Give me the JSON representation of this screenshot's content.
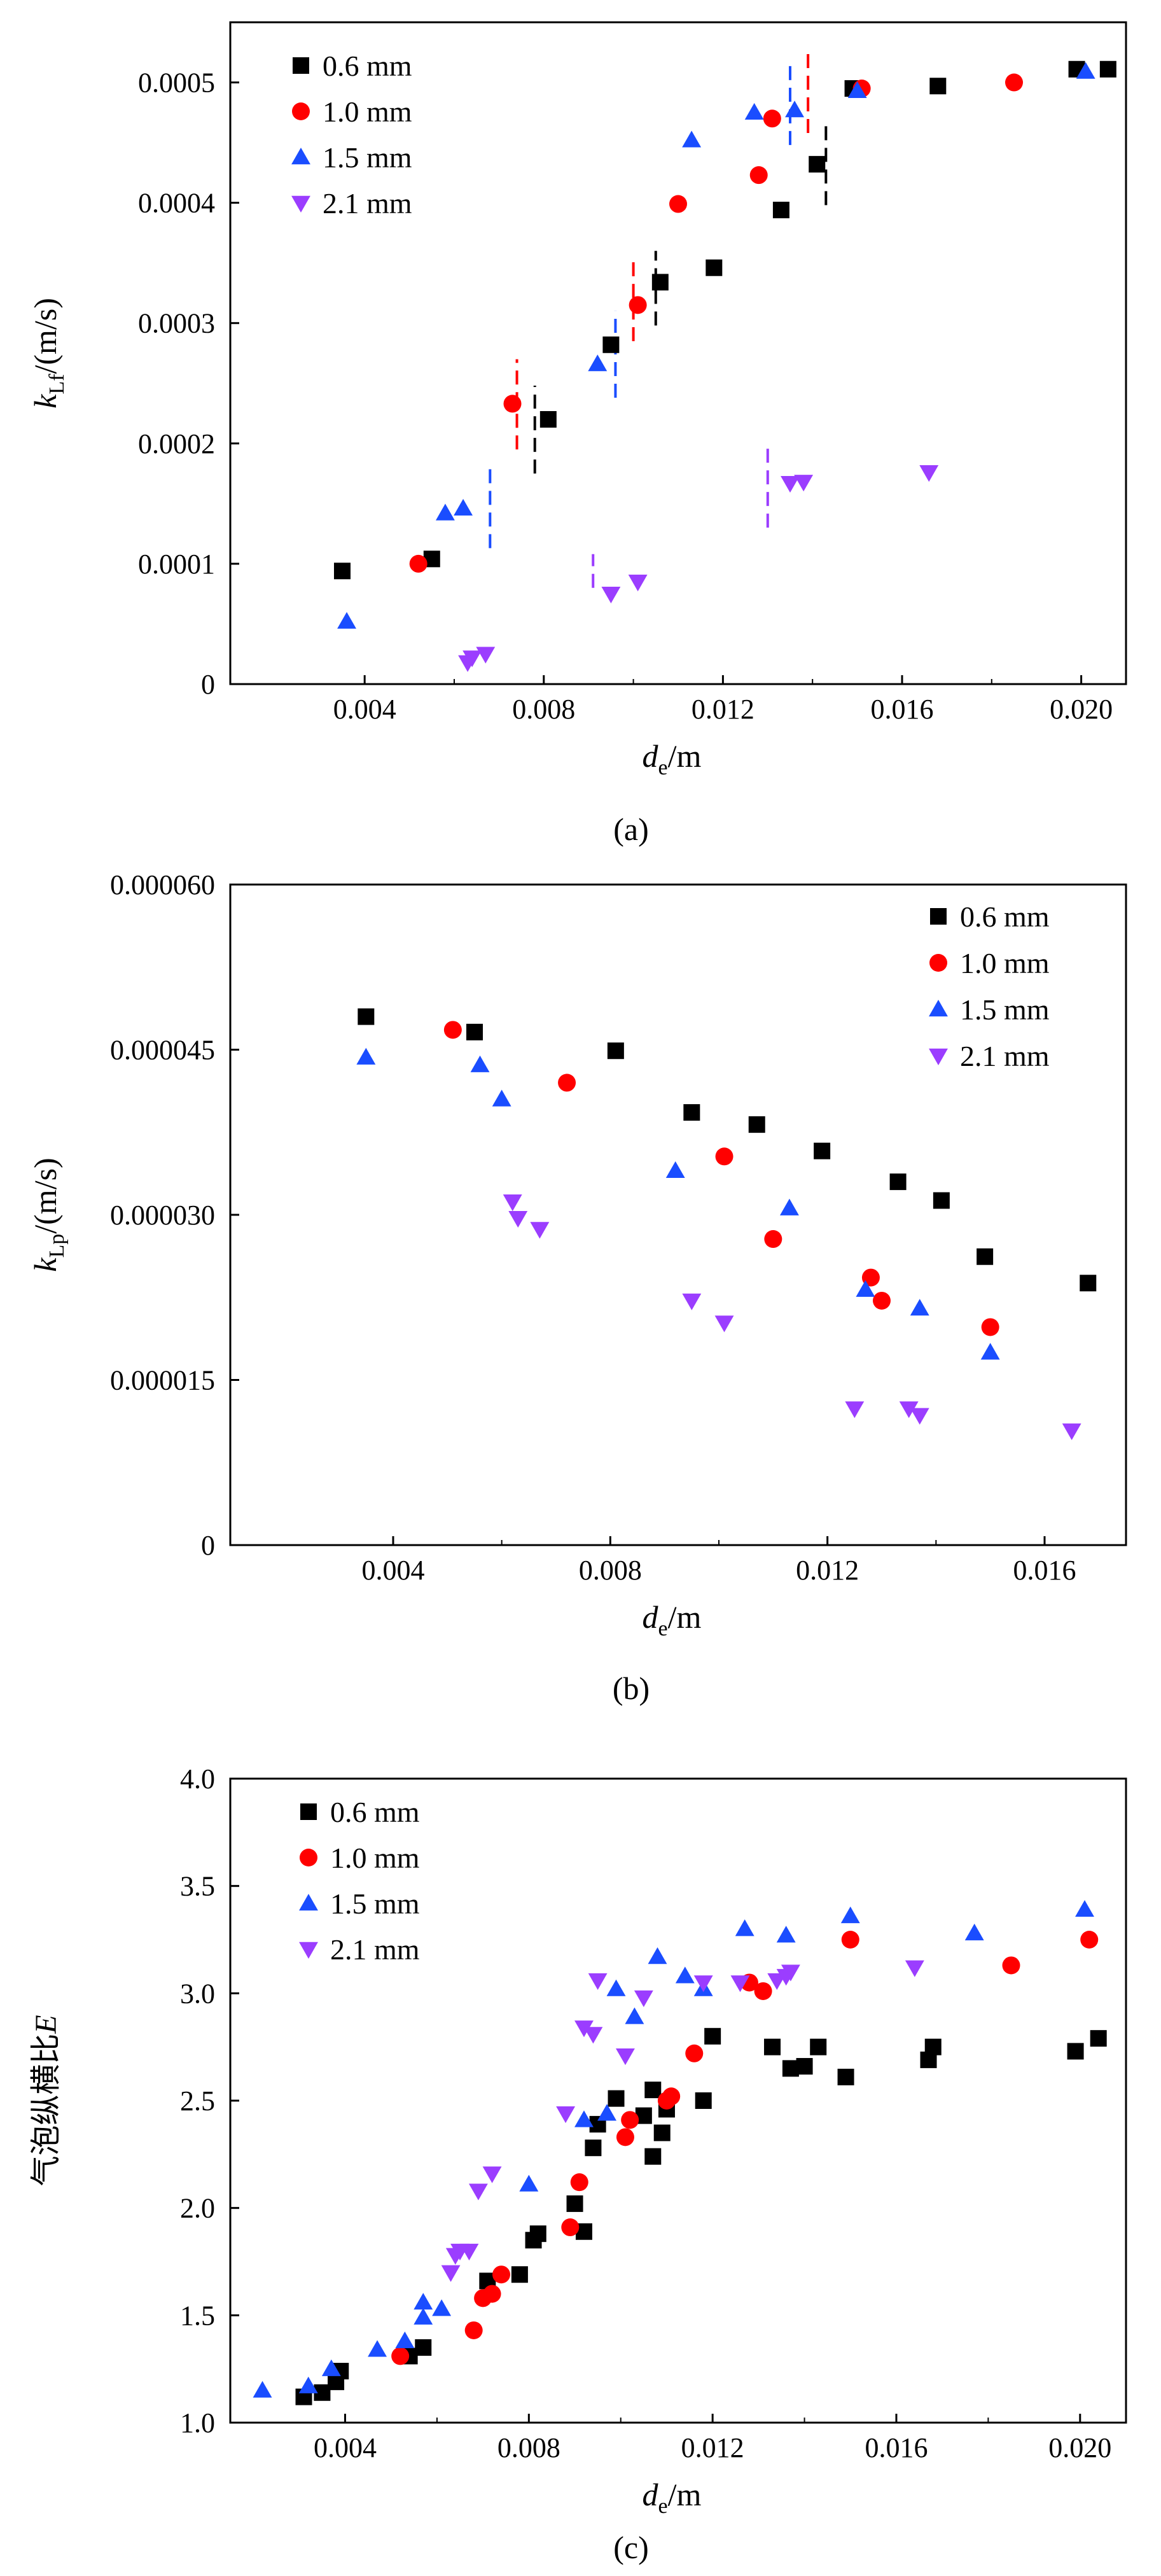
{
  "colors": {
    "0.6 mm": "#000000",
    "1.0 mm": "#ff0000",
    "1.5 mm": "#1a4dff",
    "2.1 mm": "#9b3dff"
  },
  "markers": {
    "0.6 mm": "square",
    "1.0 mm": "circle",
    "1.5 mm": "triangle-up",
    "2.1 mm": "triangle-down"
  },
  "chart_data": [
    {
      "type": "scatter",
      "panel": "(a)",
      "xlabel": {
        "main": "d",
        "sub": "e",
        "unit": "/m"
      },
      "ylabel": {
        "main": "k",
        "sub": "Lf",
        "unit": "/(m/s)"
      },
      "xlim": [
        0.001,
        0.021
      ],
      "ylim": [
        0,
        0.00055
      ],
      "xticks": [
        0.004,
        0.008,
        0.012,
        0.016,
        0.02
      ],
      "xtick_labels": [
        "0.004",
        "0.008",
        "0.012",
        "0.016",
        "0.020"
      ],
      "yticks": [
        0,
        0.0001,
        0.0002,
        0.0003,
        0.0004,
        0.0005
      ],
      "ytick_labels": [
        "0",
        "0.0001",
        "0.0002",
        "0.0003",
        "0.0004",
        "0.0005"
      ],
      "legend_position": "top-left",
      "series": [
        {
          "name": "0.6 mm",
          "points": [
            [
              0.0035,
              9.4e-05
            ],
            [
              0.0055,
              0.000104
            ],
            [
              0.0081,
              0.00022
            ],
            [
              0.0095,
              0.000282
            ],
            [
              0.0106,
              0.000334
            ],
            [
              0.0118,
              0.000346
            ],
            [
              0.0133,
              0.000394
            ],
            [
              0.0141,
              0.000432
            ],
            [
              0.0149,
              0.000495
            ],
            [
              0.0168,
              0.000497
            ],
            [
              0.0199,
              0.000511
            ],
            [
              0.0206,
              0.000511
            ]
          ]
        },
        {
          "name": "1.0 mm",
          "points": [
            [
              0.0052,
              0.0001
            ],
            [
              0.0073,
              0.000233
            ],
            [
              0.0101,
              0.000315
            ],
            [
              0.011,
              0.000399
            ],
            [
              0.0128,
              0.000423
            ],
            [
              0.0131,
              0.00047
            ],
            [
              0.0151,
              0.000495
            ],
            [
              0.0185,
              0.0005
            ]
          ]
        },
        {
          "name": "1.5 mm",
          "points": [
            [
              0.0036,
              5.2e-05
            ],
            [
              0.0058,
              0.000142
            ],
            [
              0.0062,
              0.000146
            ],
            [
              0.0092,
              0.000266
            ],
            [
              0.0113,
              0.000452
            ],
            [
              0.0127,
              0.000475
            ],
            [
              0.0136,
              0.000477
            ],
            [
              0.015,
              0.000493
            ],
            [
              0.0201,
              0.000509
            ]
          ]
        },
        {
          "name": "2.1 mm",
          "points": [
            [
              0.0063,
              1.8e-05
            ],
            [
              0.0064,
              2.2e-05
            ],
            [
              0.0067,
              2.5e-05
            ],
            [
              0.0095,
              7.5e-05
            ],
            [
              0.0101,
              8.5e-05
            ],
            [
              0.0135,
              0.000167
            ],
            [
              0.0138,
              0.000168
            ],
            [
              0.0166,
              0.000176
            ]
          ]
        }
      ],
      "dashed_markers": [
        {
          "series": "1.5 mm",
          "x": 0.0068,
          "y0": 0.000113,
          "y1": 0.00018
        },
        {
          "series": "1.0 mm",
          "x": 0.0074,
          "y0": 0.000195,
          "y1": 0.00027
        },
        {
          "series": "0.6 mm",
          "x": 0.0078,
          "y0": 0.000175,
          "y1": 0.000248
        },
        {
          "series": "2.1 mm",
          "x": 0.0091,
          "y0": 8e-05,
          "y1": 0.000108
        },
        {
          "series": "1.5 mm",
          "x": 0.0096,
          "y0": 0.000238,
          "y1": 0.00031
        },
        {
          "series": "1.0 mm",
          "x": 0.01,
          "y0": 0.000285,
          "y1": 0.000355
        },
        {
          "series": "0.6 mm",
          "x": 0.0105,
          "y0": 0.000298,
          "y1": 0.00036
        },
        {
          "series": "2.1 mm",
          "x": 0.013,
          "y0": 0.00013,
          "y1": 0.000197
        },
        {
          "series": "1.5 mm",
          "x": 0.0135,
          "y0": 0.000448,
          "y1": 0.000518
        },
        {
          "series": "1.0 mm",
          "x": 0.0139,
          "y0": 0.000458,
          "y1": 0.000525
        },
        {
          "series": "0.6 mm",
          "x": 0.0143,
          "y0": 0.000398,
          "y1": 0.000468
        }
      ]
    },
    {
      "type": "scatter",
      "panel": "(b)",
      "xlabel": {
        "main": "d",
        "sub": "e",
        "unit": "/m"
      },
      "ylabel": {
        "main": "k",
        "sub": "Lp",
        "unit": "/(m/s)"
      },
      "xlim": [
        0.001,
        0.0175
      ],
      "ylim": [
        0,
        6e-05
      ],
      "xticks": [
        0.004,
        0.008,
        0.012,
        0.016
      ],
      "xtick_labels": [
        "0.004",
        "0.008",
        "0.012",
        "0.016"
      ],
      "yticks": [
        0,
        1.5e-05,
        3e-05,
        4.5e-05,
        6e-05
      ],
      "ytick_labels": [
        "0",
        "0.000015",
        "0.000030",
        "0.000045",
        "0.000060"
      ],
      "legend_position": "top-right",
      "series": [
        {
          "name": "0.6 mm",
          "points": [
            [
              0.0035,
              4.8e-05
            ],
            [
              0.0055,
              4.66e-05
            ],
            [
              0.0081,
              4.49e-05
            ],
            [
              0.0095,
              3.93e-05
            ],
            [
              0.0107,
              3.82e-05
            ],
            [
              0.0119,
              3.58e-05
            ],
            [
              0.0133,
              3.3e-05
            ],
            [
              0.0141,
              3.13e-05
            ],
            [
              0.0149,
              2.62e-05
            ],
            [
              0.0168,
              2.38e-05
            ]
          ]
        },
        {
          "name": "1.0 mm",
          "points": [
            [
              0.0051,
              4.68e-05
            ],
            [
              0.0072,
              4.2e-05
            ],
            [
              0.0101,
              3.53e-05
            ],
            [
              0.011,
              2.78e-05
            ],
            [
              0.0128,
              2.43e-05
            ],
            [
              0.013,
              2.22e-05
            ],
            [
              0.015,
              1.98e-05
            ]
          ]
        },
        {
          "name": "1.5 mm",
          "points": [
            [
              0.0035,
              4.43e-05
            ],
            [
              0.0056,
              4.36e-05
            ],
            [
              0.006,
              4.05e-05
            ],
            [
              0.0092,
              3.4e-05
            ],
            [
              0.0113,
              3.06e-05
            ],
            [
              0.0127,
              2.32e-05
            ],
            [
              0.0137,
              2.15e-05
            ],
            [
              0.015,
              1.75e-05
            ]
          ]
        },
        {
          "name": "2.1 mm",
          "points": [
            [
              0.0062,
              3.12e-05
            ],
            [
              0.0063,
              2.97e-05
            ],
            [
              0.0067,
              2.87e-05
            ],
            [
              0.0095,
              2.22e-05
            ],
            [
              0.0101,
              2.02e-05
            ],
            [
              0.0125,
              1.24e-05
            ],
            [
              0.0135,
              1.24e-05
            ],
            [
              0.0137,
              1.18e-05
            ],
            [
              0.0165,
              1.04e-05
            ]
          ]
        }
      ]
    },
    {
      "type": "scatter",
      "panel": "(c)",
      "xlabel": {
        "main": "d",
        "sub": "e",
        "unit": "/m"
      },
      "ylabel": {
        "main": "气泡纵横比",
        "italic": "E"
      },
      "xlim": [
        0.0015,
        0.021
      ],
      "ylim": [
        1.0,
        4.0
      ],
      "xticks": [
        0.004,
        0.008,
        0.012,
        0.016,
        0.02
      ],
      "xtick_labels": [
        "0.004",
        "0.008",
        "0.012",
        "0.016",
        "0.020"
      ],
      "yticks": [
        1.0,
        1.5,
        2.0,
        2.5,
        3.0,
        3.5,
        4.0
      ],
      "ytick_labels": [
        "1.0",
        "1.5",
        "2.0",
        "2.5",
        "3.0",
        "3.5",
        "4.0"
      ],
      "legend_position": "top-left",
      "series": [
        {
          "name": "0.6 mm",
          "points": [
            [
              0.0031,
              1.12
            ],
            [
              0.0035,
              1.14
            ],
            [
              0.0038,
              1.19
            ],
            [
              0.0039,
              1.24
            ],
            [
              0.0054,
              1.31
            ],
            [
              0.0057,
              1.35
            ],
            [
              0.0071,
              1.66
            ],
            [
              0.0078,
              1.69
            ],
            [
              0.0081,
              1.85
            ],
            [
              0.0082,
              1.88
            ],
            [
              0.009,
              2.02
            ],
            [
              0.0092,
              1.89
            ],
            [
              0.0094,
              2.28
            ],
            [
              0.0095,
              2.39
            ],
            [
              0.0099,
              2.51
            ],
            [
              0.0105,
              2.43
            ],
            [
              0.0107,
              2.24
            ],
            [
              0.0107,
              2.55
            ],
            [
              0.0109,
              2.35
            ],
            [
              0.011,
              2.46
            ],
            [
              0.0118,
              2.5
            ],
            [
              0.012,
              2.8
            ],
            [
              0.0133,
              2.75
            ],
            [
              0.0137,
              2.65
            ],
            [
              0.014,
              2.66
            ],
            [
              0.0143,
              2.75
            ],
            [
              0.0149,
              2.61
            ],
            [
              0.0167,
              2.69
            ],
            [
              0.0168,
              2.75
            ],
            [
              0.0199,
              2.73
            ],
            [
              0.0204,
              2.79
            ]
          ]
        },
        {
          "name": "1.0 mm",
          "points": [
            [
              0.0052,
              1.31
            ],
            [
              0.0068,
              1.43
            ],
            [
              0.007,
              1.58
            ],
            [
              0.0072,
              1.6
            ],
            [
              0.0074,
              1.69
            ],
            [
              0.0089,
              1.91
            ],
            [
              0.0091,
              2.12
            ],
            [
              0.0101,
              2.33
            ],
            [
              0.0102,
              2.41
            ],
            [
              0.011,
              2.5
            ],
            [
              0.0111,
              2.52
            ],
            [
              0.0116,
              2.72
            ],
            [
              0.0128,
              3.05
            ],
            [
              0.0131,
              3.01
            ],
            [
              0.015,
              3.25
            ],
            [
              0.0185,
              3.13
            ],
            [
              0.0202,
              3.25
            ]
          ]
        },
        {
          "name": "1.5 mm",
          "points": [
            [
              0.0022,
              1.15
            ],
            [
              0.0032,
              1.17
            ],
            [
              0.0037,
              1.25
            ],
            [
              0.0047,
              1.34
            ],
            [
              0.0053,
              1.38
            ],
            [
              0.0057,
              1.49
            ],
            [
              0.0057,
              1.56
            ],
            [
              0.0061,
              1.53
            ],
            [
              0.008,
              2.11
            ],
            [
              0.0092,
              2.41
            ],
            [
              0.0097,
              2.44
            ],
            [
              0.0099,
              3.02
            ],
            [
              0.0103,
              2.89
            ],
            [
              0.0108,
              3.17
            ],
            [
              0.0114,
              3.08
            ],
            [
              0.0118,
              3.02
            ],
            [
              0.0127,
              3.3
            ],
            [
              0.0136,
              3.27
            ],
            [
              0.015,
              3.36
            ],
            [
              0.0177,
              3.28
            ],
            [
              0.0201,
              3.39
            ]
          ]
        },
        {
          "name": "2.1 mm",
          "points": [
            [
              0.0063,
              1.7
            ],
            [
              0.0064,
              1.78
            ],
            [
              0.0065,
              1.8
            ],
            [
              0.0067,
              1.8
            ],
            [
              0.0069,
              2.08
            ],
            [
              0.0072,
              2.16
            ],
            [
              0.0088,
              2.44
            ],
            [
              0.0092,
              2.84
            ],
            [
              0.0094,
              2.81
            ],
            [
              0.0095,
              3.06
            ],
            [
              0.0101,
              2.71
            ],
            [
              0.0105,
              2.98
            ],
            [
              0.0118,
              3.05
            ],
            [
              0.0126,
              3.05
            ],
            [
              0.0134,
              3.06
            ],
            [
              0.0136,
              3.08
            ],
            [
              0.0137,
              3.1
            ],
            [
              0.0164,
              3.12
            ]
          ]
        }
      ]
    }
  ]
}
